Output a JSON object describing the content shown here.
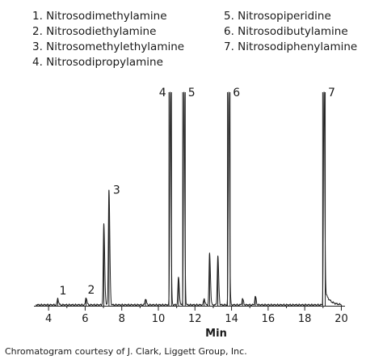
{
  "chart_data": {
    "type": "line",
    "title": "",
    "xlabel": "Min",
    "ylabel": "",
    "xlim": [
      3.2,
      20.2
    ],
    "ylim": [
      0,
      100
    ],
    "x_ticks": [
      4,
      6,
      8,
      10,
      12,
      14,
      16,
      18,
      20
    ],
    "legend": [
      "1. Nitrosodimethylamine",
      "2. Nitrosodiethylamine",
      "3. Nitrosomethylethylamine",
      "4. Nitrosodipropylamine",
      "5. Nitrosopiperidine",
      "6. Nitrosodibutylamine",
      "7. Nitrosodiphenylamine"
    ],
    "legend_placement": "top",
    "grid": false,
    "peaks": [
      {
        "label": "1",
        "x": 4.5,
        "height": 3
      },
      {
        "label": "2",
        "x": 6.05,
        "height": 3.5
      },
      {
        "label": "",
        "x": 7.02,
        "height": 38
      },
      {
        "label": "3",
        "x": 7.3,
        "height": 54
      },
      {
        "label": "",
        "x": 9.3,
        "height": 3
      },
      {
        "label": "4",
        "x": 10.65,
        "height": 100
      },
      {
        "label": "",
        "x": 11.1,
        "height": 13
      },
      {
        "label": "5",
        "x": 11.4,
        "height": 100
      },
      {
        "label": "",
        "x": 12.5,
        "height": 3
      },
      {
        "label": "",
        "x": 12.8,
        "height": 24
      },
      {
        "label": "",
        "x": 13.25,
        "height": 23
      },
      {
        "label": "6",
        "x": 13.85,
        "height": 100
      },
      {
        "label": "",
        "x": 14.6,
        "height": 3
      },
      {
        "label": "",
        "x": 15.3,
        "height": 4
      },
      {
        "label": "7",
        "x": 19.05,
        "height": 100
      }
    ]
  },
  "credit": "Chromatogram courtesy of J. Clark, Liggett Group, Inc."
}
